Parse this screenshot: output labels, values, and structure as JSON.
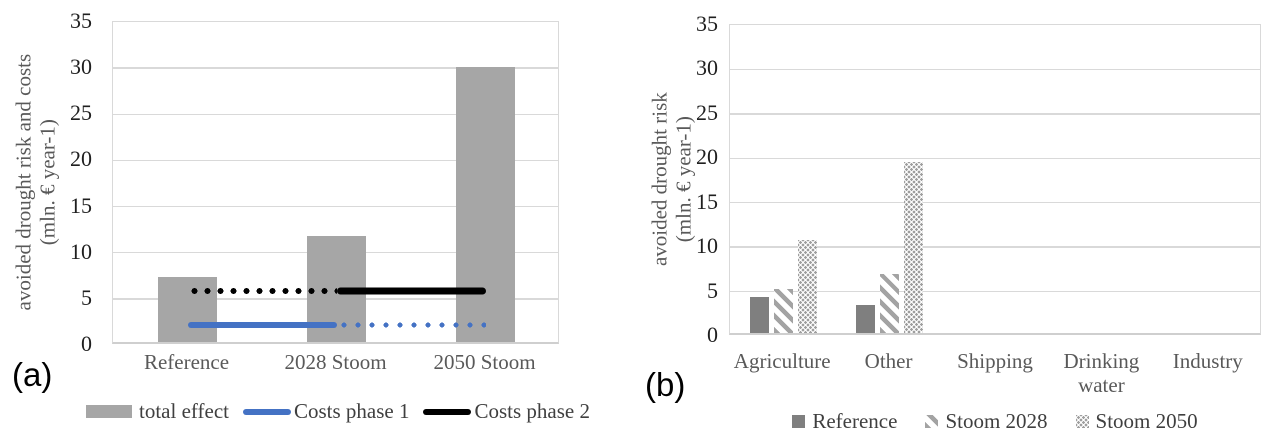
{
  "figure": {
    "panels": [
      {
        "label": "(a)"
      },
      {
        "label": "(b)"
      }
    ]
  },
  "colors": {
    "bar-gray": "#a6a6a6",
    "reference-gray": "#7f7f7f",
    "pattern-gray": "#9f9f9f",
    "line-blue": "#4472c4",
    "line-black": "#000000",
    "gridline": "#d9d9d9",
    "axis-line": "#cfcfcf",
    "tick-text": "#1f1f1f",
    "muted-text": "#595959",
    "legend-text": "#3f3f3f",
    "panel-text": "#000000"
  },
  "chart_data": [
    {
      "id": "a",
      "type": "bar",
      "subtype": "bar-with-lines",
      "panel_label": "(a)",
      "ylabel": "avoided drought risk and costs (mln. € year-1)",
      "ylabel_lines": [
        "avoided drought risk and costs",
        "(mln. € year-1)"
      ],
      "ylim": [
        0,
        35
      ],
      "yticks": [
        0,
        5,
        10,
        15,
        20,
        25,
        30,
        35
      ],
      "grid": true,
      "legend_position": "bottom",
      "categories": [
        "Reference",
        "2028 Stoom",
        "2050 Stoom"
      ],
      "series": [
        {
          "name": "total effect",
          "type": "bar",
          "values": [
            7.0,
            11.5,
            29.8
          ]
        },
        {
          "name": "Costs phase 1",
          "type": "line",
          "color_key": "line-blue",
          "values": [
            2.2,
            2.2,
            2.2
          ],
          "segments": [
            {
              "from": "Reference",
              "to": "2028 Stoom",
              "style": "solid"
            },
            {
              "from": "2028 Stoom",
              "to": "2050 Stoom",
              "style": "dotted"
            }
          ]
        },
        {
          "name": "Costs phase 2",
          "type": "line",
          "color_key": "line-black",
          "values": [
            5.9,
            5.9,
            5.9
          ],
          "segments": [
            {
              "from": "Reference",
              "to": "2028 Stoom",
              "style": "dotted"
            },
            {
              "from": "2028 Stoom",
              "to": "2050 Stoom",
              "style": "solid"
            }
          ]
        }
      ],
      "legend": [
        {
          "label": "total effect",
          "swatch": "bar-gray"
        },
        {
          "label": "Costs phase 1",
          "swatch": "line-blue"
        },
        {
          "label": "Costs phase 2",
          "swatch": "line-black"
        }
      ]
    },
    {
      "id": "b",
      "type": "bar",
      "subtype": "grouped-bars",
      "panel_label": "(b)",
      "ylabel": "avoided drought risk (mln. € year-1)",
      "ylabel_lines": [
        "avoided drought risk",
        "(mln. € year-1)"
      ],
      "ylim": [
        0,
        35
      ],
      "yticks": [
        0,
        5,
        10,
        15,
        20,
        25,
        30,
        35
      ],
      "grid": true,
      "legend_position": "bottom",
      "categories": [
        "Agriculture",
        "Other",
        "Shipping",
        "Drinking water",
        "Industry"
      ],
      "series": [
        {
          "name": "Reference",
          "type": "bar",
          "pattern": "solid",
          "values": [
            4.0,
            3.1,
            0,
            0,
            0
          ]
        },
        {
          "name": "Stoom 2028",
          "type": "bar",
          "pattern": "hatch",
          "values": [
            4.9,
            6.6,
            0,
            0,
            0
          ]
        },
        {
          "name": "Stoom 2050",
          "type": "bar",
          "pattern": "dots",
          "values": [
            10.5,
            19.3,
            0,
            0,
            0
          ]
        }
      ],
      "legend": [
        {
          "label": "Reference",
          "swatch": "solid-dark-gray"
        },
        {
          "label": "Stoom 2028",
          "swatch": "hatch"
        },
        {
          "label": "Stoom 2050",
          "swatch": "dots"
        }
      ]
    }
  ]
}
